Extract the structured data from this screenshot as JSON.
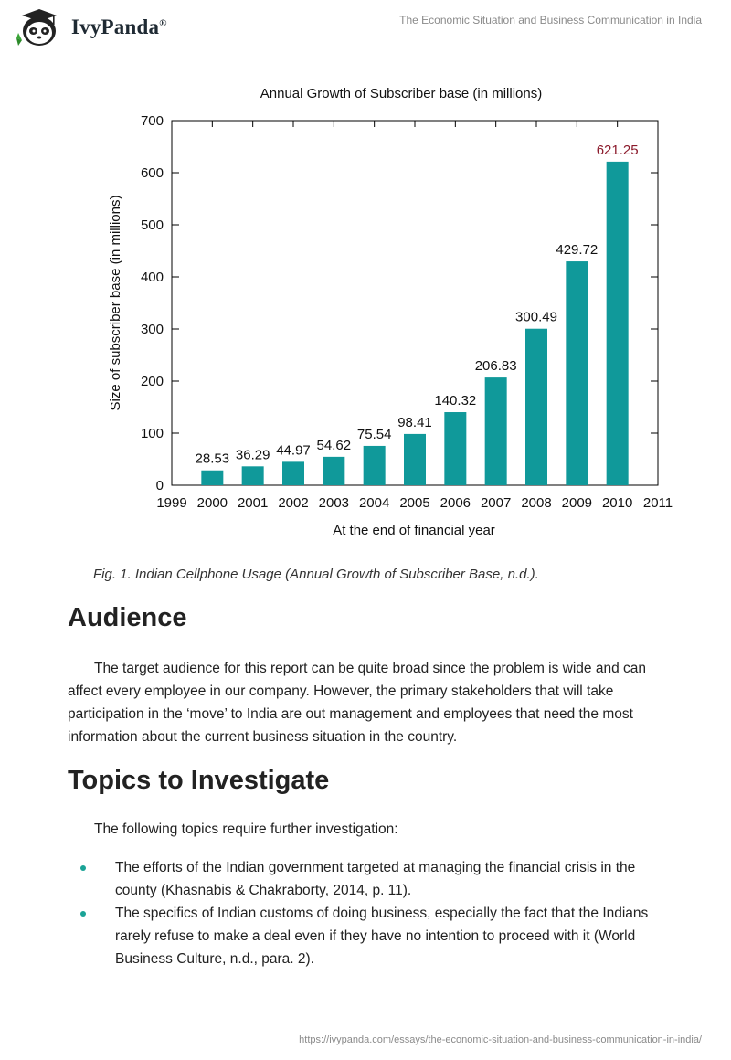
{
  "header": {
    "logo_text": "IvyPanda",
    "logo_mark": "®",
    "doc_title": "The Economic Situation and Business Communication in India"
  },
  "chart_data": {
    "type": "bar",
    "title": "Annual Growth of Subscriber base (in millions)",
    "xlabel": "At the end of financial year",
    "ylabel": "Size of subscriber base (in millions)",
    "categories": [
      "2000",
      "2001",
      "2002",
      "2003",
      "2004",
      "2005",
      "2006",
      "2007",
      "2008",
      "2009",
      "2010"
    ],
    "values": [
      28.53,
      36.29,
      44.97,
      54.62,
      75.54,
      98.41,
      140.32,
      206.83,
      300.49,
      429.72,
      621.25
    ],
    "value_labels": [
      "28.53",
      "36.29",
      "44.97",
      "54.62",
      "75.54",
      "98.41",
      "140.32",
      "206.83",
      "300.49",
      "429.72",
      "621.25"
    ],
    "x_ticks": [
      "1999",
      "2000",
      "2001",
      "2002",
      "2003",
      "2004",
      "2005",
      "2006",
      "2007",
      "2008",
      "2009",
      "2010",
      "2011"
    ],
    "y_ticks": [
      "0",
      "100",
      "200",
      "300",
      "400",
      "500",
      "600",
      "700"
    ],
    "ylim": [
      0,
      700
    ],
    "xlim": [
      1999,
      2011
    ],
    "bar_color": "#10999a",
    "highlight_label_color": "#8b1a2b",
    "grid": false
  },
  "caption": "Fig. 1. Indian Cellphone Usage (Annual Growth of Subscriber Base, n.d.).",
  "sections": {
    "audience_heading": "Audience",
    "audience_text": "The target audience for this report can be quite broad since the problem is wide and can affect every employee in our company. However, the primary stakeholders that will take participation in the ‘move’ to India are out management and employees that need the most information about the current business situation in the country.",
    "topics_heading": "Topics to Investigate",
    "topics_intro": "The following topics require further investigation:",
    "topics": [
      "The efforts of the Indian government targeted at managing the financial crisis in the county (Khasnabis & Chakraborty, 2014, p. 11).",
      "The specifics of Indian customs of doing business, especially the fact that the Indians rarely refuse to make a deal even if they have no intention to proceed with it (World Business Culture, n.d., para. 2)."
    ]
  },
  "footer": {
    "url": "https://ivypanda.com/essays/the-economic-situation-and-business-communication-in-india/"
  },
  "colors": {
    "accent": "#1aa396",
    "logo_green": "#3aa537"
  }
}
